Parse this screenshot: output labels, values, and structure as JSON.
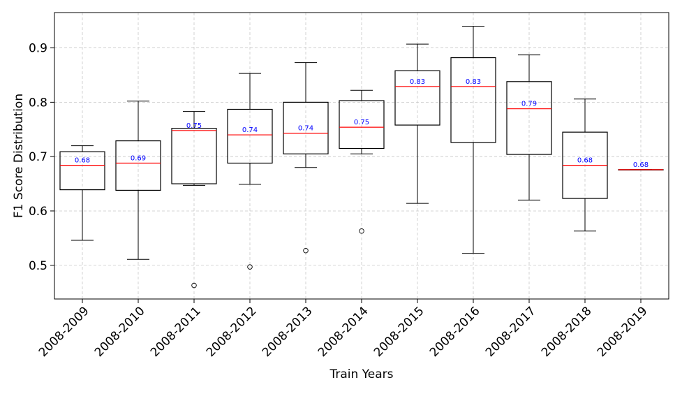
{
  "chart_data": {
    "type": "boxplot",
    "xlabel": "Train Years",
    "ylabel": "F1 Score Distribution",
    "ylim": [
      0.438,
      0.965
    ],
    "yticks": [
      0.5,
      0.6,
      0.7,
      0.8,
      0.9
    ],
    "ytick_labels": [
      "0.5",
      "0.6",
      "0.7",
      "0.8",
      "0.9"
    ],
    "grid": true,
    "categories": [
      "2008-2009",
      "2008-2010",
      "2008-2011",
      "2008-2012",
      "2008-2013",
      "2008-2014",
      "2008-2015",
      "2008-2016",
      "2008-2017",
      "2008-2018",
      "2008-2019"
    ],
    "median_labels": [
      "0.68",
      "0.69",
      "0.75",
      "0.74",
      "0.74",
      "0.75",
      "0.83",
      "0.83",
      "0.79",
      "0.68",
      "0.68"
    ],
    "boxes": [
      {
        "whislo": 0.546,
        "q1": 0.639,
        "med": 0.684,
        "q3": 0.709,
        "whishi": 0.72,
        "fliers": []
      },
      {
        "whislo": 0.511,
        "q1": 0.638,
        "med": 0.688,
        "q3": 0.729,
        "whishi": 0.802,
        "fliers": []
      },
      {
        "whislo": 0.647,
        "q1": 0.65,
        "med": 0.748,
        "q3": 0.752,
        "whishi": 0.783,
        "fliers": [
          0.463
        ]
      },
      {
        "whislo": 0.649,
        "q1": 0.688,
        "med": 0.74,
        "q3": 0.787,
        "whishi": 0.853,
        "fliers": [
          0.497
        ]
      },
      {
        "whislo": 0.68,
        "q1": 0.705,
        "med": 0.743,
        "q3": 0.8,
        "whishi": 0.873,
        "fliers": [
          0.527
        ]
      },
      {
        "whislo": 0.705,
        "q1": 0.715,
        "med": 0.754,
        "q3": 0.803,
        "whishi": 0.822,
        "fliers": [
          0.563
        ]
      },
      {
        "whislo": 0.614,
        "q1": 0.758,
        "med": 0.829,
        "q3": 0.858,
        "whishi": 0.907,
        "fliers": []
      },
      {
        "whislo": 0.522,
        "q1": 0.726,
        "med": 0.829,
        "q3": 0.882,
        "whishi": 0.94,
        "fliers": []
      },
      {
        "whislo": 0.62,
        "q1": 0.704,
        "med": 0.788,
        "q3": 0.838,
        "whishi": 0.887,
        "fliers": []
      },
      {
        "whislo": 0.563,
        "q1": 0.623,
        "med": 0.684,
        "q3": 0.745,
        "whishi": 0.806,
        "fliers": []
      },
      {
        "whislo": 0.676,
        "q1": 0.676,
        "med": 0.676,
        "q3": 0.676,
        "whishi": 0.676,
        "fliers": []
      }
    ],
    "colors": {
      "box": "#000000",
      "median": "#ff0000",
      "median_label": "#0000ff",
      "grid": "#c8c8c8"
    }
  }
}
